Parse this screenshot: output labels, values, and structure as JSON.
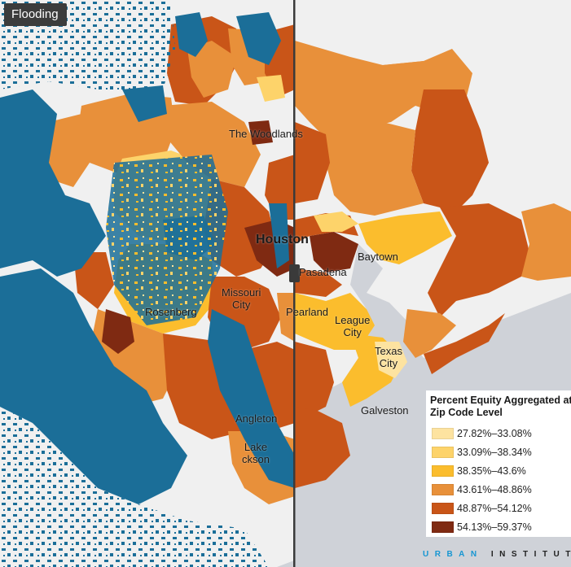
{
  "layer_badge": "Flooding",
  "place_labels": [
    {
      "id": "the-woodlands",
      "text": "The Woodlands",
      "big": false
    },
    {
      "id": "houston",
      "text": "Houston",
      "big": true
    },
    {
      "id": "baytown",
      "text": "Baytown",
      "big": false
    },
    {
      "id": "pasadena",
      "text": "Pasadena",
      "big": false
    },
    {
      "id": "missouri-city",
      "text": "Missouri\nCity",
      "big": false
    },
    {
      "id": "rosenberg",
      "text": "Rosenberg",
      "big": false
    },
    {
      "id": "pearland",
      "text": "Pearland",
      "big": false
    },
    {
      "id": "league-city",
      "text": "League\nCity",
      "big": false
    },
    {
      "id": "texas-city",
      "text": "Texas\nCity",
      "big": false
    },
    {
      "id": "galveston",
      "text": "Galveston",
      "big": false
    },
    {
      "id": "angleton",
      "text": "Angleton",
      "big": false
    },
    {
      "id": "lake-jackson",
      "text": "Lake\nckson",
      "big": false
    }
  ],
  "legend": {
    "title": "Percent Equity Aggregated at Zip Code Level",
    "items": [
      {
        "label": "27.82%–33.08%",
        "color": "#fde3a0"
      },
      {
        "label": "33.09%–38.34%",
        "color": "#fdd36a"
      },
      {
        "label": "38.35%–43.6%",
        "color": "#fbbd2d"
      },
      {
        "label": "43.61%–48.86%",
        "color": "#e8903a"
      },
      {
        "label": "48.87%–54.12%",
        "color": "#c95518"
      },
      {
        "label": "54.13%–59.37%",
        "color": "#7f2a12"
      }
    ]
  },
  "colors": {
    "land": "#f0f0f0",
    "water": "#cfd2d8",
    "flood": "#1b6e98",
    "divider": "#3a3a3a"
  },
  "attribution": {
    "part_a": "URBAN",
    "part_b": "INSTITUTE"
  }
}
